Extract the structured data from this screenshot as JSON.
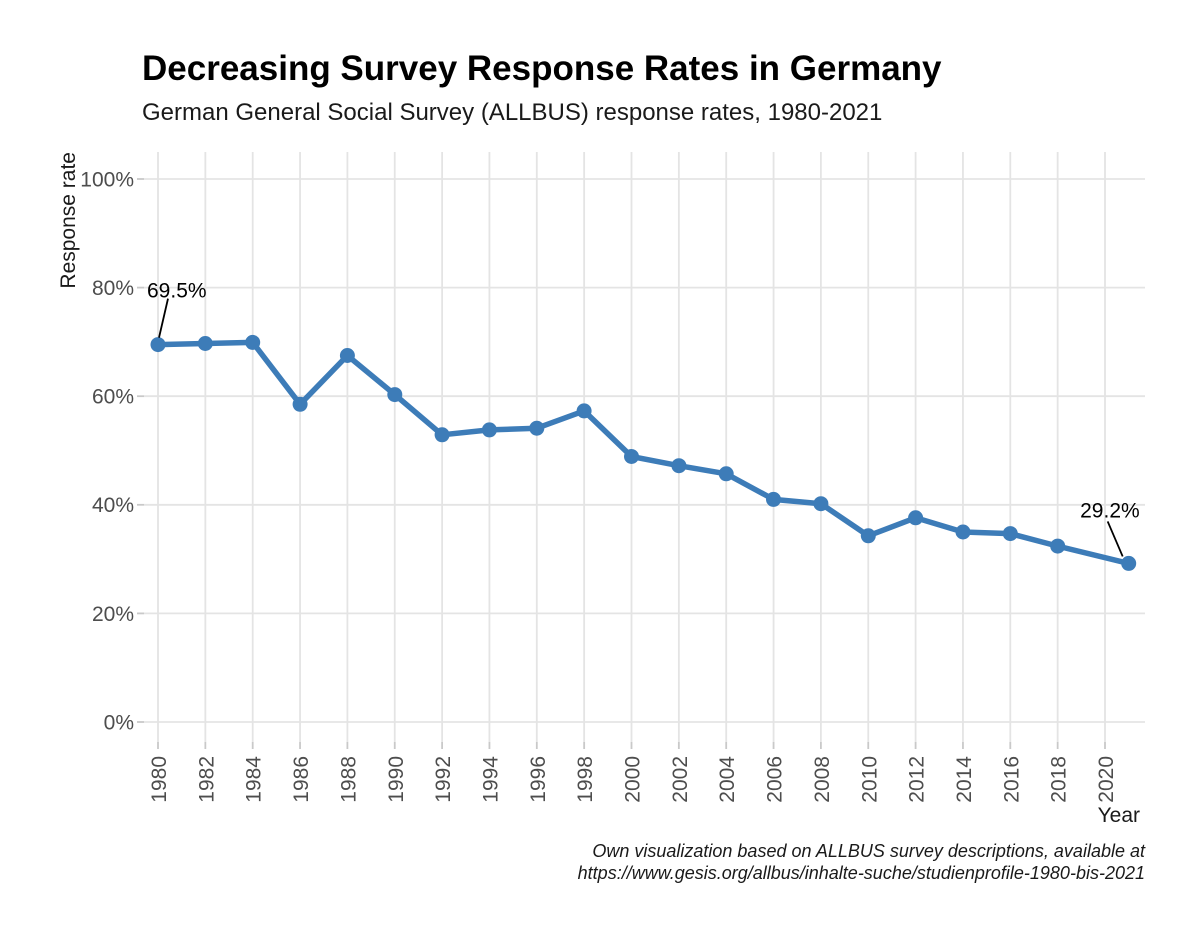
{
  "header": {
    "title": "Decreasing Survey Response Rates in Germany",
    "subtitle": "German General Social Survey (ALLBUS) response rates, 1980-2021"
  },
  "caption": {
    "line1": "Own visualization based on ALLBUS survey descriptions, available at",
    "line2": "https://www.gesis.org/allbus/inhalte-suche/studienprofile-1980-bis-2021"
  },
  "chart_data": {
    "type": "line",
    "title": "Decreasing Survey Response Rates in Germany",
    "subtitle": "German General Social Survey (ALLBUS) response rates, 1980-2021",
    "xlabel": "Year",
    "ylabel": "Response rate",
    "x": [
      1980,
      1982,
      1984,
      1986,
      1988,
      1990,
      1992,
      1994,
      1996,
      1998,
      2000,
      2002,
      2004,
      2006,
      2008,
      2010,
      2012,
      2014,
      2016,
      2018,
      2021
    ],
    "values": [
      69.5,
      69.7,
      69.9,
      58.5,
      67.5,
      60.3,
      52.9,
      53.8,
      54.1,
      57.3,
      48.9,
      47.2,
      45.7,
      41.0,
      40.2,
      34.3,
      37.6,
      35.0,
      34.7,
      32.4,
      29.2
    ],
    "xticks": [
      1980,
      1982,
      1984,
      1986,
      1988,
      1990,
      1992,
      1994,
      1996,
      1998,
      2000,
      2002,
      2004,
      2006,
      2008,
      2010,
      2012,
      2014,
      2016,
      2018,
      2020
    ],
    "yticks": [
      0,
      20,
      40,
      60,
      80,
      100
    ],
    "ytick_labels": [
      "0%",
      "20%",
      "40%",
      "60%",
      "80%",
      "100%"
    ],
    "ylim": [
      0,
      100
    ],
    "xlim": [
      1980,
      2021
    ],
    "grid": "major-on",
    "legend": "none",
    "annotations": [
      {
        "label": "69.5%",
        "x": 1980,
        "y": 69.5
      },
      {
        "label": "29.2%",
        "x": 2021,
        "y": 29.2
      }
    ],
    "colors": {
      "line": "#3d7cb8",
      "gridline": "#e4e4e4",
      "tick_label": "#4d4d4d",
      "tick_mark": "#c9c9c9",
      "text": "#1a1a1a",
      "annotation_line": "#000000"
    }
  }
}
